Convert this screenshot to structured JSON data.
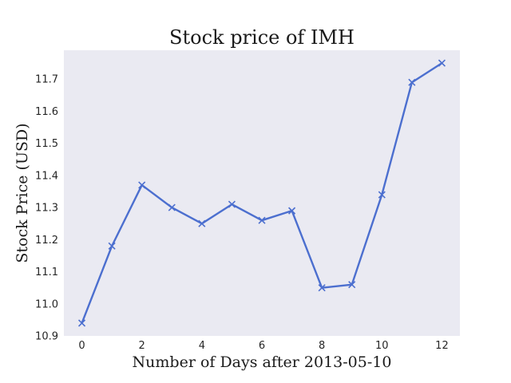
{
  "chart_data": {
    "type": "line",
    "title": "Stock price of IMH",
    "xlabel": "Number of Days after 2013-05-10",
    "ylabel": "Stock Price (USD)",
    "xlim": [
      -0.6,
      12.6
    ],
    "ylim": [
      10.9,
      11.79
    ],
    "xticks": [
      0,
      2,
      4,
      6,
      8,
      10,
      12
    ],
    "yticks": [
      10.9,
      11.0,
      11.1,
      11.2,
      11.3,
      11.4,
      11.5,
      11.6,
      11.7
    ],
    "grid": false,
    "legend": "none",
    "series": [
      {
        "x": [
          0,
          1,
          2,
          3,
          4,
          5,
          6,
          7,
          8,
          9,
          10,
          11,
          12
        ],
        "values": [
          10.94,
          11.18,
          11.37,
          11.3,
          11.25,
          11.31,
          11.26,
          11.29,
          11.05,
          11.06,
          11.34,
          11.69,
          11.75
        ],
        "color": "#4c6fcf",
        "marker": "x"
      }
    ],
    "background_color": "#eaeaf2"
  }
}
